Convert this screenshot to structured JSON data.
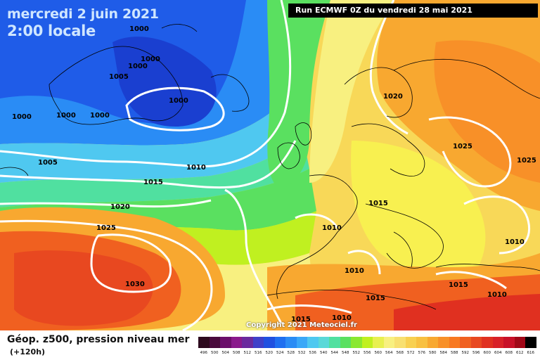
{
  "header": {
    "date": "mercredi 2 juin 2021",
    "time": "2:00 locale",
    "run": "Run ECMWF 0Z du vendredi 28 mai 2021"
  },
  "map": {
    "isobar_labels": [
      "1000",
      "1000",
      "1005",
      "1000",
      "1000",
      "1000",
      "1000",
      "1000",
      "1005",
      "1010",
      "1015",
      "1020",
      "1025",
      "1030",
      "1020",
      "1025",
      "1025",
      "1015",
      "1010",
      "1010",
      "1010",
      "1015",
      "1015",
      "1010",
      "1010",
      "1015"
    ]
  },
  "copyright": "Copyright 2021 Meteociel.fr",
  "footer": {
    "field": "Géop. z500, pression niveau mer",
    "lead": "(+120h)"
  },
  "legend": {
    "values": [
      "496",
      "500",
      "504",
      "508",
      "512",
      "516",
      "520",
      "524",
      "528",
      "532",
      "536",
      "540",
      "544",
      "548",
      "552",
      "556",
      "560",
      "564",
      "568",
      "572",
      "576",
      "580",
      "584",
      "588",
      "592",
      "596",
      "600",
      "604",
      "608",
      "612",
      "616"
    ],
    "colors": [
      "#2d0a1e",
      "#4a0a3c",
      "#6b0f6b",
      "#8a1a8c",
      "#6a2a9e",
      "#4040c8",
      "#2050e0",
      "#1f6ff0",
      "#2a8cf5",
      "#3aa8f8",
      "#4fc8f0",
      "#5ad8d8",
      "#50e0a0",
      "#5ae060",
      "#8ae830",
      "#c0f020",
      "#e8f050",
      "#f8f080",
      "#f8e070",
      "#f8d050",
      "#f8c040",
      "#f8a830",
      "#f89028",
      "#f87820",
      "#f06020",
      "#e84820",
      "#e03020",
      "#d82028",
      "#c81028",
      "#a00818",
      "#000000"
    ]
  }
}
